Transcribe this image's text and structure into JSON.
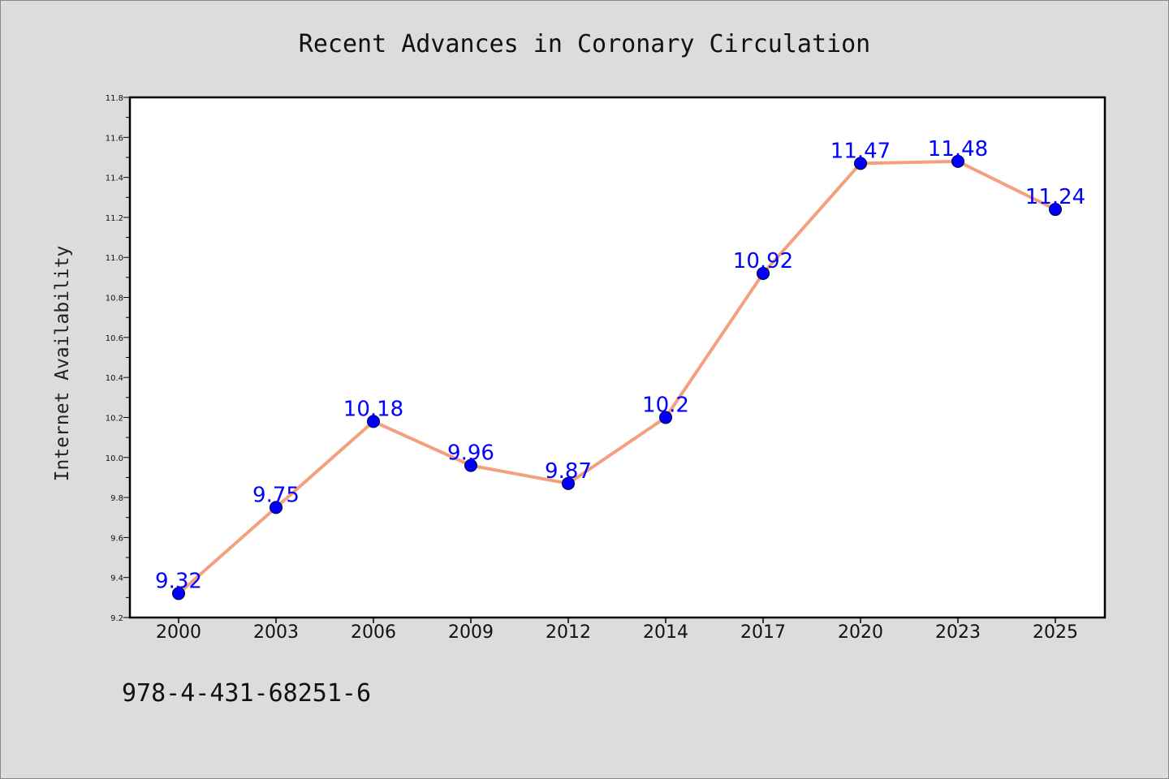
{
  "chart_data": {
    "type": "line",
    "title": "Recent Advances in Coronary Circulation",
    "xlabel": "",
    "ylabel": "Internet Availability",
    "categories": [
      "2000",
      "2003",
      "2006",
      "2009",
      "2012",
      "2014",
      "2017",
      "2020",
      "2023",
      "2025"
    ],
    "series": [
      {
        "values": [
          9.32,
          9.75,
          10.18,
          9.96,
          9.87,
          10.2,
          10.92,
          11.47,
          11.48,
          11.24
        ],
        "labels": [
          "9.32",
          "9.75",
          "10.18",
          "9.96",
          "9.87",
          "10.2",
          "10.92",
          "11.47",
          "11.48",
          "11.24"
        ],
        "line_color": "#f4a07e",
        "marker_color": "#0000ff"
      }
    ],
    "ylim": [
      9.2,
      11.8
    ],
    "yticks": [
      "9.2",
      "9.4",
      "9.6",
      "9.8",
      "10.0",
      "10.2",
      "10.4",
      "10.6",
      "10.8",
      "11.0",
      "11.2",
      "11.4",
      "11.6",
      "11.8"
    ],
    "grid": false,
    "legend": "none"
  },
  "footer": {
    "text": "978-4-431-68251-6"
  },
  "colors": {
    "background": "#dcdcdc",
    "plot_background": "#ffffff",
    "frame": "#000000"
  }
}
